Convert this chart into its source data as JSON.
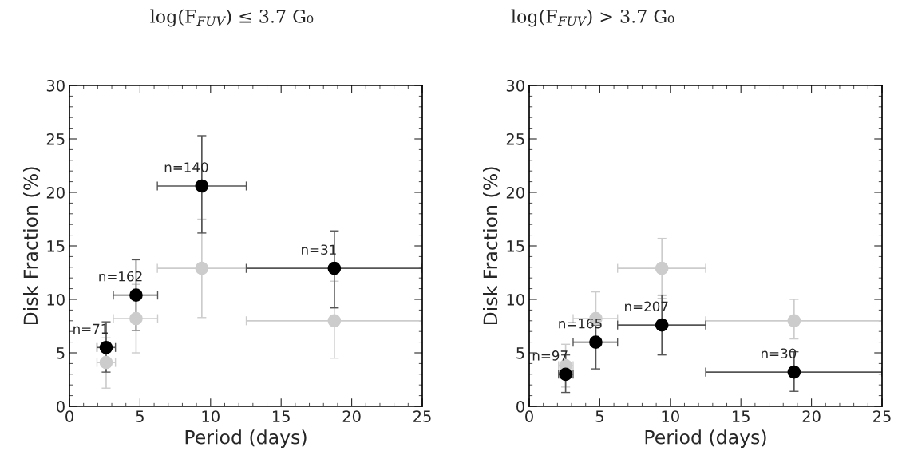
{
  "chart_data": [
    {
      "type": "scatter",
      "title": "log(F$_{FUV}$) ≤ 3.7 G₀",
      "xlabel": "Period (days)",
      "ylabel": "Disk Fraction (%)",
      "xlim": [
        0,
        25
      ],
      "ylim": [
        0,
        30
      ],
      "xticks": [
        0,
        5,
        10,
        15,
        20,
        25
      ],
      "yticks": [
        0,
        5,
        10,
        15,
        20,
        25,
        30
      ],
      "grid": false,
      "legend": false,
      "marker": "circle",
      "series": [
        {
          "color": "#cccccc",
          "x": [
            2.6,
            4.72,
            9.38,
            18.77
          ],
          "values": [
            4.1,
            8.2,
            12.9,
            8.0
          ],
          "errors": [
            [
              1.7,
              6.4
            ],
            [
              5.0,
              11.4
            ],
            [
              8.3,
              17.5
            ],
            [
              4.5,
              11.7
            ]
          ],
          "xerrors": [
            [
              1.95,
              3.26
            ],
            [
              3.11,
              6.25
            ],
            [
              6.23,
              12.53
            ],
            [
              12.53,
              25
            ]
          ]
        },
        {
          "color": "#000000",
          "x": [
            2.6,
            4.72,
            9.38,
            18.77
          ],
          "values": [
            5.5,
            10.4,
            20.6,
            12.9
          ],
          "errors": [
            [
              3.2,
              7.9
            ],
            [
              7.1,
              13.7
            ],
            [
              16.2,
              25.3
            ],
            [
              9.2,
              16.4
            ]
          ],
          "xerrors": [
            [
              1.95,
              3.26
            ],
            [
              3.11,
              6.25
            ],
            [
              6.23,
              12.53
            ],
            [
              12.53,
              25
            ]
          ]
        }
      ],
      "annotations": [
        {
          "text": "n=71",
          "x": 2.6,
          "y": 5.5
        },
        {
          "text": "n=162",
          "x": 4.72,
          "y": 10.4
        },
        {
          "text": "n=140",
          "x": 9.38,
          "y": 20.6
        },
        {
          "text": "n=31",
          "x": 18.77,
          "y": 12.9
        }
      ]
    },
    {
      "type": "scatter",
      "title": "log(F$_{FUV}$) > 3.7 G₀",
      "xlabel": "Period (days)",
      "ylabel": "Disk Fraction (%)",
      "xlim": [
        0,
        25
      ],
      "ylim": [
        0,
        30
      ],
      "xticks": [
        0,
        5,
        10,
        15,
        20,
        25
      ],
      "yticks": [
        0,
        5,
        10,
        15,
        20,
        25,
        30
      ],
      "grid": false,
      "legend": false,
      "marker": "circle",
      "series": [
        {
          "color": "#cccccc",
          "x": [
            2.58,
            4.72,
            9.4,
            18.77
          ],
          "values": [
            3.8,
            8.2,
            12.9,
            8.0
          ],
          "errors": [
            [
              1.8,
              5.8
            ],
            [
              8.2,
              10.7
            ],
            [
              10.1,
              15.7
            ],
            [
              6.3,
              10.0
            ]
          ],
          "xerrors": [
            [
              2.08,
              3.11
            ],
            [
              3.11,
              6.26
            ],
            [
              6.26,
              12.5
            ],
            [
              12.5,
              25
            ]
          ]
        },
        {
          "color": "#000000",
          "x": [
            2.58,
            4.72,
            9.4,
            18.77
          ],
          "values": [
            3.0,
            6.0,
            7.6,
            3.2
          ],
          "errors": [
            [
              1.3,
              4.8
            ],
            [
              3.5,
              7.6
            ],
            [
              4.8,
              10.4
            ],
            [
              1.4,
              5.1
            ]
          ],
          "xerrors": [
            [
              2.08,
              3.11
            ],
            [
              3.11,
              6.26
            ],
            [
              6.26,
              12.5
            ],
            [
              12.5,
              25
            ]
          ]
        }
      ],
      "annotations": [
        {
          "text": "n=97",
          "x": 2.58,
          "y": 3.0
        },
        {
          "text": "n=165",
          "x": 4.72,
          "y": 6.0
        },
        {
          "text": "n=207",
          "x": 9.4,
          "y": 7.6
        },
        {
          "text": "n=30",
          "x": 18.77,
          "y": 3.2
        }
      ]
    }
  ]
}
